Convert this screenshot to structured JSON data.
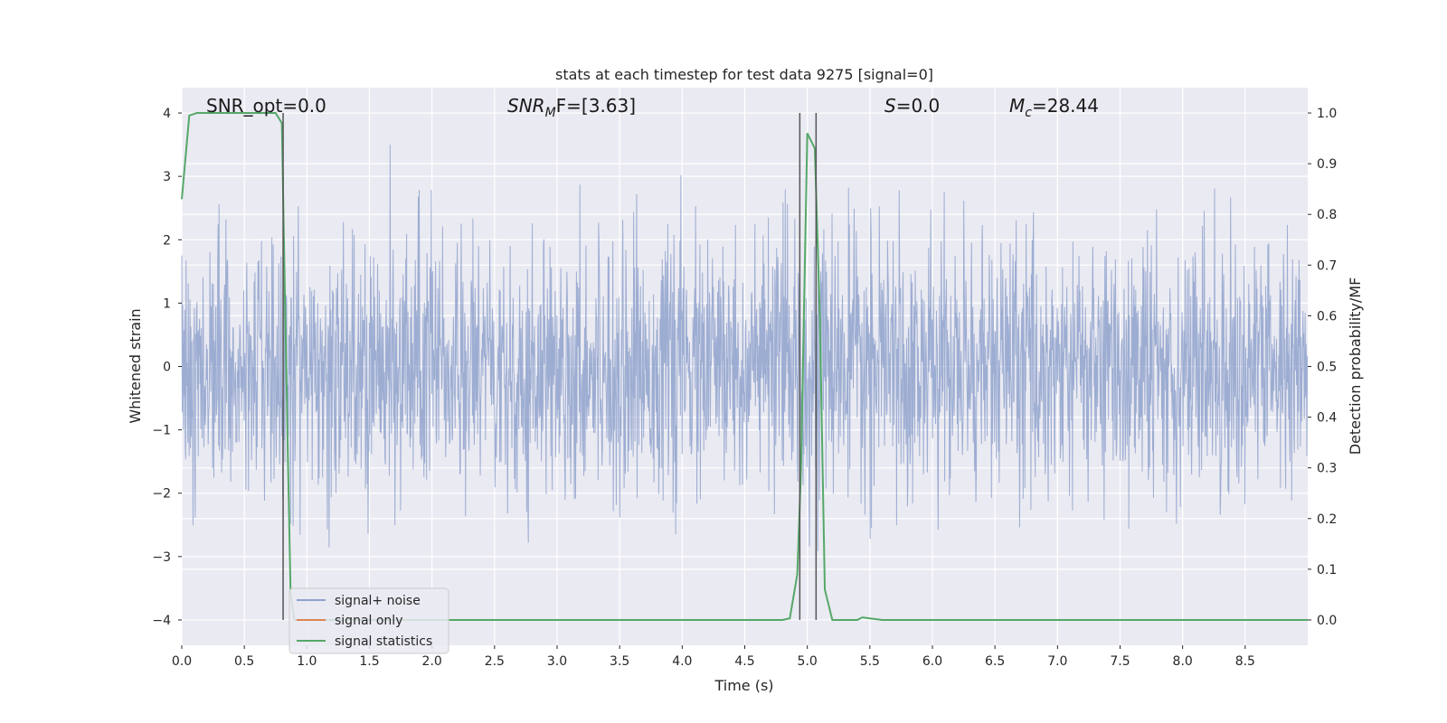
{
  "chart_data": {
    "type": "line",
    "title": "stats at each timestep for test data 9275 [signal=0]",
    "xlabel": "Time (s)",
    "ylabel": "Whitened strain",
    "y2label": "Detection probability/MF",
    "xlim": [
      0,
      9.0
    ],
    "ylim": [
      -4.4,
      4.4
    ],
    "y2lim": [
      -0.05,
      1.05
    ],
    "xticks": [
      0.0,
      0.5,
      1.0,
      1.5,
      2.0,
      2.5,
      3.0,
      3.5,
      4.0,
      4.5,
      5.0,
      5.5,
      6.0,
      6.5,
      7.0,
      7.5,
      8.0,
      8.5
    ],
    "xtick_labels": [
      "0.0",
      "0.5",
      "1.0",
      "1.5",
      "2.0",
      "2.5",
      "3.0",
      "3.5",
      "4.0",
      "4.5",
      "5.0",
      "5.5",
      "6.0",
      "6.5",
      "7.0",
      "7.5",
      "8.0",
      "8.5"
    ],
    "yticks": [
      4,
      3,
      2,
      1,
      0,
      -1,
      -2,
      -3,
      -4
    ],
    "ytick_labels": [
      "4",
      "3",
      "2",
      "1",
      "0",
      "−1",
      "−2",
      "−3",
      "−4"
    ],
    "y2ticks": [
      1.0,
      0.9,
      0.8,
      0.7,
      0.6,
      0.5,
      0.4,
      0.3,
      0.2,
      0.1,
      0.0
    ],
    "y2tick_labels": [
      "1.0",
      "0.9",
      "0.8",
      "0.7",
      "0.6",
      "0.5",
      "0.4",
      "0.3",
      "0.2",
      "0.1",
      "0.0"
    ],
    "grid": true,
    "legend_position": "bottom-left",
    "annotations": [
      {
        "prefix": "SNR_opt",
        "suffix": "=0.0",
        "italic_part": "",
        "sub": ""
      },
      {
        "prefix": "",
        "italic_part": "SNR",
        "sub": "M",
        "suffix": "F=[3.63]"
      },
      {
        "prefix": "",
        "italic_part": "S",
        "sub": "",
        "suffix": "=0.0"
      },
      {
        "prefix": "",
        "italic_part": "M",
        "sub": "c",
        "suffix": "=28.44"
      }
    ],
    "series": [
      {
        "name": "signal+ noise",
        "color": "#8fa2cc",
        "kind": "noise",
        "axis": "left",
        "x_range": [
          0,
          9.0
        ],
        "typical_amplitude": 1.0,
        "peak_range": [
          -3.9,
          3.5
        ]
      },
      {
        "name": "signal only",
        "color": "#dd8452",
        "kind": "line",
        "axis": "left",
        "x": [],
        "y": []
      },
      {
        "name": "signal statistics",
        "color": "#55a868",
        "kind": "line",
        "axis": "right",
        "x": [
          0.0,
          0.06,
          0.12,
          0.2,
          0.3,
          0.4,
          0.5,
          0.6,
          0.7,
          0.75,
          0.8,
          0.82,
          0.85,
          0.87,
          0.9,
          1.0,
          1.5,
          2.0,
          2.5,
          3.0,
          3.5,
          4.0,
          4.5,
          4.8,
          4.86,
          4.92,
          4.95,
          5.0,
          5.04,
          5.06,
          5.1,
          5.14,
          5.2,
          5.3,
          5.4,
          5.44,
          5.5,
          5.6,
          6.0,
          7.0,
          8.0,
          9.0
        ],
        "y": [
          0.83,
          0.995,
          1.0,
          1.0,
          1.0,
          1.0,
          1.0,
          1.0,
          1.0,
          1.0,
          0.98,
          0.7,
          0.3,
          0.05,
          0.0,
          0.0,
          0.0,
          0.0,
          0.0,
          0.0,
          0.0,
          0.0,
          0.0,
          0.0,
          0.003,
          0.09,
          0.3,
          0.96,
          0.94,
          0.93,
          0.6,
          0.06,
          0.0,
          0.0,
          0.0,
          0.005,
          0.003,
          0.0,
          0.0,
          0.0,
          0.0,
          0.0
        ]
      }
    ],
    "vertical_markers": [
      {
        "x": 0.81,
        "color": "#555555"
      },
      {
        "x": 4.94,
        "color": "#555555"
      },
      {
        "x": 5.07,
        "color": "#555555"
      }
    ]
  }
}
